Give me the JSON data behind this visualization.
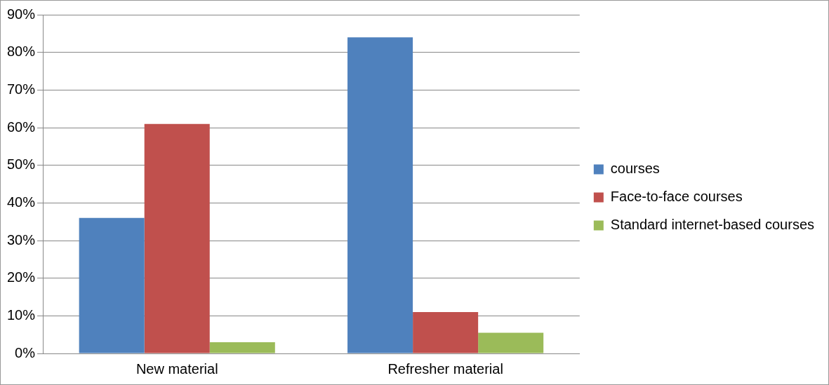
{
  "chart_data": {
    "type": "bar",
    "categories": [
      "New material",
      "Refresher material"
    ],
    "series": [
      {
        "name": "courses",
        "color": "#4f81bd",
        "values": [
          36,
          84
        ]
      },
      {
        "name": "Face-to-face courses",
        "color": "#c0504d",
        "values": [
          61,
          11
        ]
      },
      {
        "name": "Standard internet-based courses",
        "color": "#9bbb59",
        "values": [
          3,
          5.5
        ]
      }
    ],
    "ylim": [
      0,
      90
    ],
    "yticks": [
      {
        "value": 0,
        "label": "0%"
      },
      {
        "value": 10,
        "label": "10%"
      },
      {
        "value": 20,
        "label": "20%"
      },
      {
        "value": 30,
        "label": "30%"
      },
      {
        "value": 40,
        "label": "40%"
      },
      {
        "value": 50,
        "label": "50%"
      },
      {
        "value": 60,
        "label": "60%"
      },
      {
        "value": 70,
        "label": "70%"
      },
      {
        "value": 80,
        "label": "80%"
      },
      {
        "value": 90,
        "label": "90%"
      }
    ],
    "grid": "y",
    "legend": "right"
  }
}
